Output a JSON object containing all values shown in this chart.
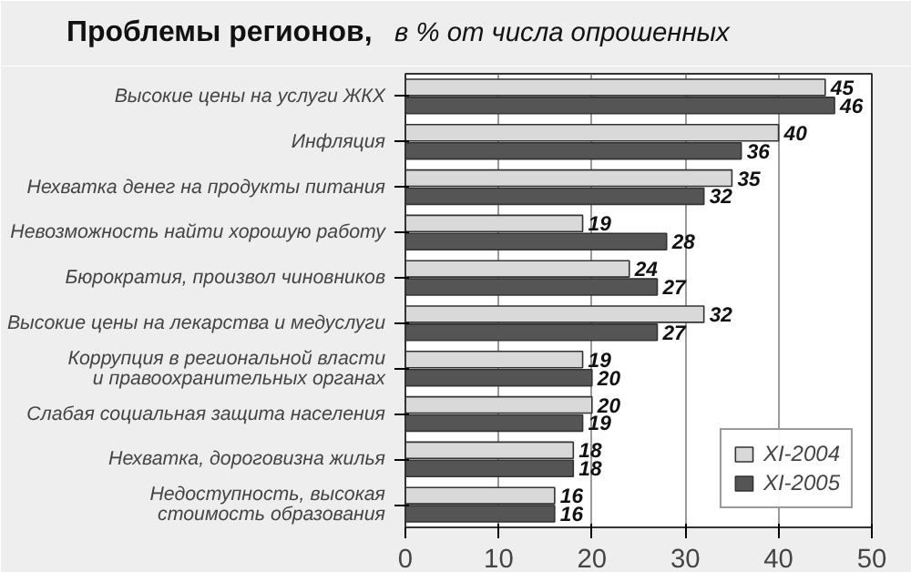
{
  "chart_data": {
    "type": "bar",
    "orientation": "horizontal",
    "title": "Проблемы регионов,",
    "subtitle": "в % от числа опрошенных",
    "categories": [
      "Высокие цены на услуги ЖКХ",
      "Инфляция",
      "Нехватка денег на продукты питания",
      "Невозможность найти хорошую работу",
      "Бюрократия, произвол чиновников",
      "Высокие цены на лекарства и медуслуги",
      "Коррупция в региональной власти\nи правоохранительных органах",
      "Слабая социальная защита населения",
      "Нехватка, дороговизна жилья",
      "Недоступность, высокая\nстоимость образования"
    ],
    "series": [
      {
        "name": "XI-2004",
        "color": "#d9d9d9",
        "values": [
          45,
          40,
          35,
          19,
          24,
          32,
          19,
          20,
          18,
          16
        ]
      },
      {
        "name": "XI-2005",
        "color": "#555555",
        "values": [
          46,
          36,
          32,
          28,
          27,
          27,
          20,
          19,
          18,
          16
        ]
      }
    ],
    "xlim": [
      0,
      50
    ],
    "xticks": [
      0,
      10,
      20,
      30,
      40,
      50
    ],
    "grid": "x",
    "legend": "bottom right",
    "data_labels": true
  }
}
